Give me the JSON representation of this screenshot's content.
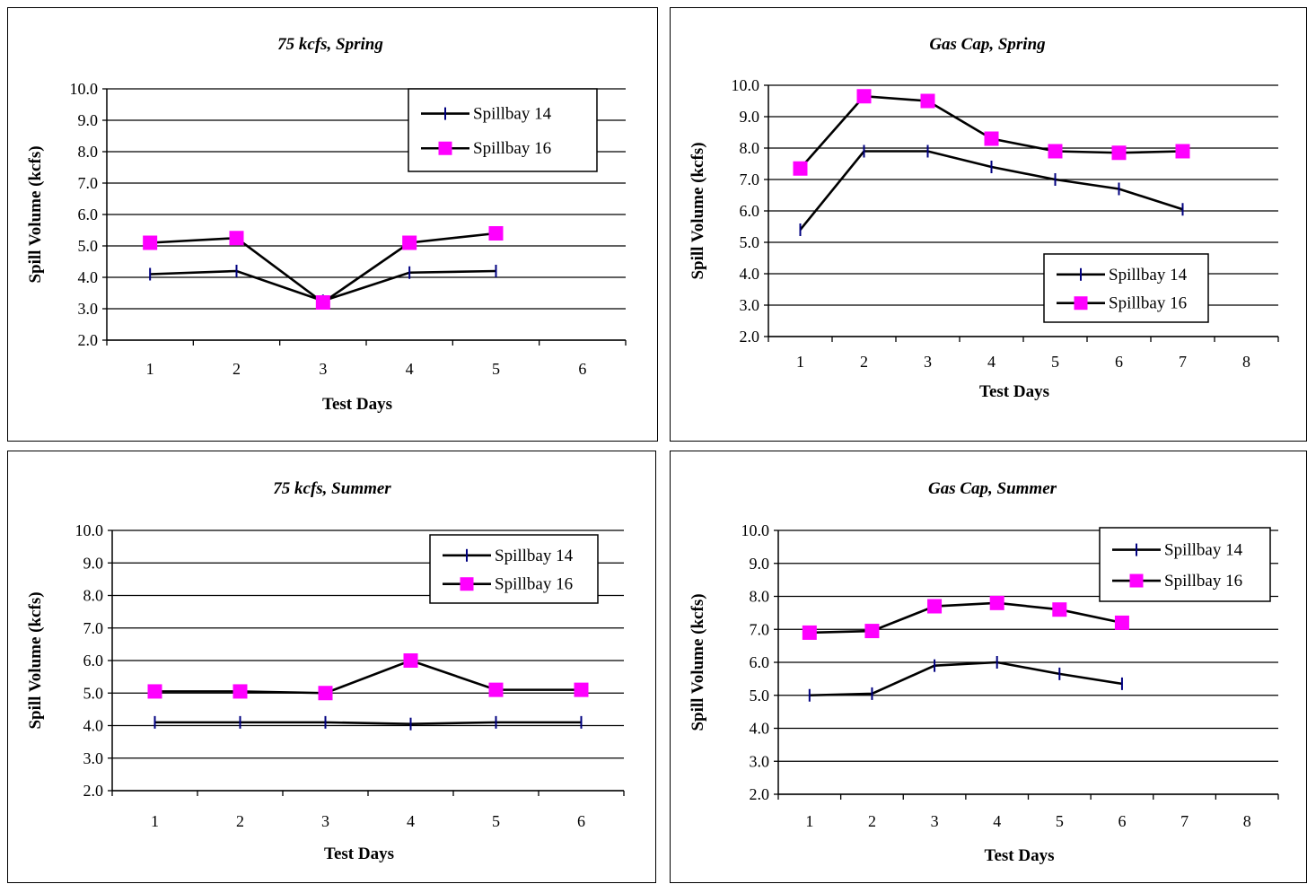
{
  "chart_data": [
    {
      "type": "line",
      "title": "75 kcfs, Spring",
      "xlabel": "Test Days",
      "ylabel": "Spill Volume (kcfs)",
      "categories": [
        "1",
        "2",
        "3",
        "4",
        "5",
        "6"
      ],
      "ylim": [
        2.0,
        10.0
      ],
      "yticks": [
        "2.0",
        "3.0",
        "4.0",
        "5.0",
        "6.0",
        "7.0",
        "8.0",
        "9.0",
        "10.0"
      ],
      "grid": true,
      "legend": "top-right",
      "series": [
        {
          "name": "Spillbay 14",
          "marker": "tick",
          "color": "#000080",
          "values": [
            4.1,
            4.2,
            3.25,
            4.15,
            4.2,
            null
          ]
        },
        {
          "name": "Spillbay 16",
          "marker": "square",
          "color": "#ff00ff",
          "values": [
            5.1,
            5.25,
            3.2,
            5.1,
            5.4,
            null
          ]
        }
      ]
    },
    {
      "type": "line",
      "title": "Gas Cap, Spring",
      "xlabel": "Test Days",
      "ylabel": "Spill Volume (kcfs)",
      "categories": [
        "1",
        "2",
        "3",
        "4",
        "5",
        "6",
        "7",
        "8"
      ],
      "ylim": [
        2.0,
        10.0
      ],
      "yticks": [
        "2.0",
        "3.0",
        "4.0",
        "5.0",
        "6.0",
        "7.0",
        "8.0",
        "9.0",
        "10.0"
      ],
      "grid": true,
      "legend": "bottom-right",
      "series": [
        {
          "name": "Spillbay 14",
          "marker": "tick",
          "color": "#000080",
          "values": [
            5.4,
            7.9,
            7.9,
            7.4,
            7.0,
            6.7,
            6.05,
            null
          ]
        },
        {
          "name": "Spillbay 16",
          "marker": "square",
          "color": "#ff00ff",
          "values": [
            7.35,
            9.65,
            9.5,
            8.3,
            7.9,
            7.85,
            7.9,
            null
          ]
        }
      ]
    },
    {
      "type": "line",
      "title": "75 kcfs, Summer",
      "xlabel": "Test Days",
      "ylabel": "Spill Volume (kcfs)",
      "categories": [
        "1",
        "2",
        "3",
        "4",
        "5",
        "6"
      ],
      "ylim": [
        2.0,
        10.0
      ],
      "yticks": [
        "2.0",
        "3.0",
        "4.0",
        "5.0",
        "6.0",
        "7.0",
        "8.0",
        "9.0",
        "10.0"
      ],
      "grid": true,
      "legend": "top-right",
      "series": [
        {
          "name": "Spillbay 14",
          "marker": "tick",
          "color": "#000080",
          "values": [
            4.1,
            4.1,
            4.1,
            4.05,
            4.1,
            4.1
          ]
        },
        {
          "name": "Spillbay 16",
          "marker": "square",
          "color": "#ff00ff",
          "values": [
            5.05,
            5.05,
            5.0,
            6.0,
            5.1,
            5.1
          ]
        }
      ]
    },
    {
      "type": "line",
      "title": "Gas Cap, Summer",
      "xlabel": "Test Days",
      "ylabel": "Spill Volume (kcfs)",
      "categories": [
        "1",
        "2",
        "3",
        "4",
        "5",
        "6",
        "7",
        "8"
      ],
      "ylim": [
        2.0,
        10.0
      ],
      "yticks": [
        "2.0",
        "3.0",
        "4.0",
        "5.0",
        "6.0",
        "7.0",
        "8.0",
        "9.0",
        "10.0"
      ],
      "grid": true,
      "legend": "top-right",
      "series": [
        {
          "name": "Spillbay 14",
          "marker": "tick",
          "color": "#000080",
          "values": [
            5.0,
            5.05,
            5.9,
            6.0,
            5.65,
            5.35,
            null,
            null
          ]
        },
        {
          "name": "Spillbay 16",
          "marker": "square",
          "color": "#ff00ff",
          "values": [
            6.9,
            6.95,
            7.7,
            7.8,
            7.6,
            7.2,
            null,
            null
          ]
        }
      ]
    }
  ]
}
